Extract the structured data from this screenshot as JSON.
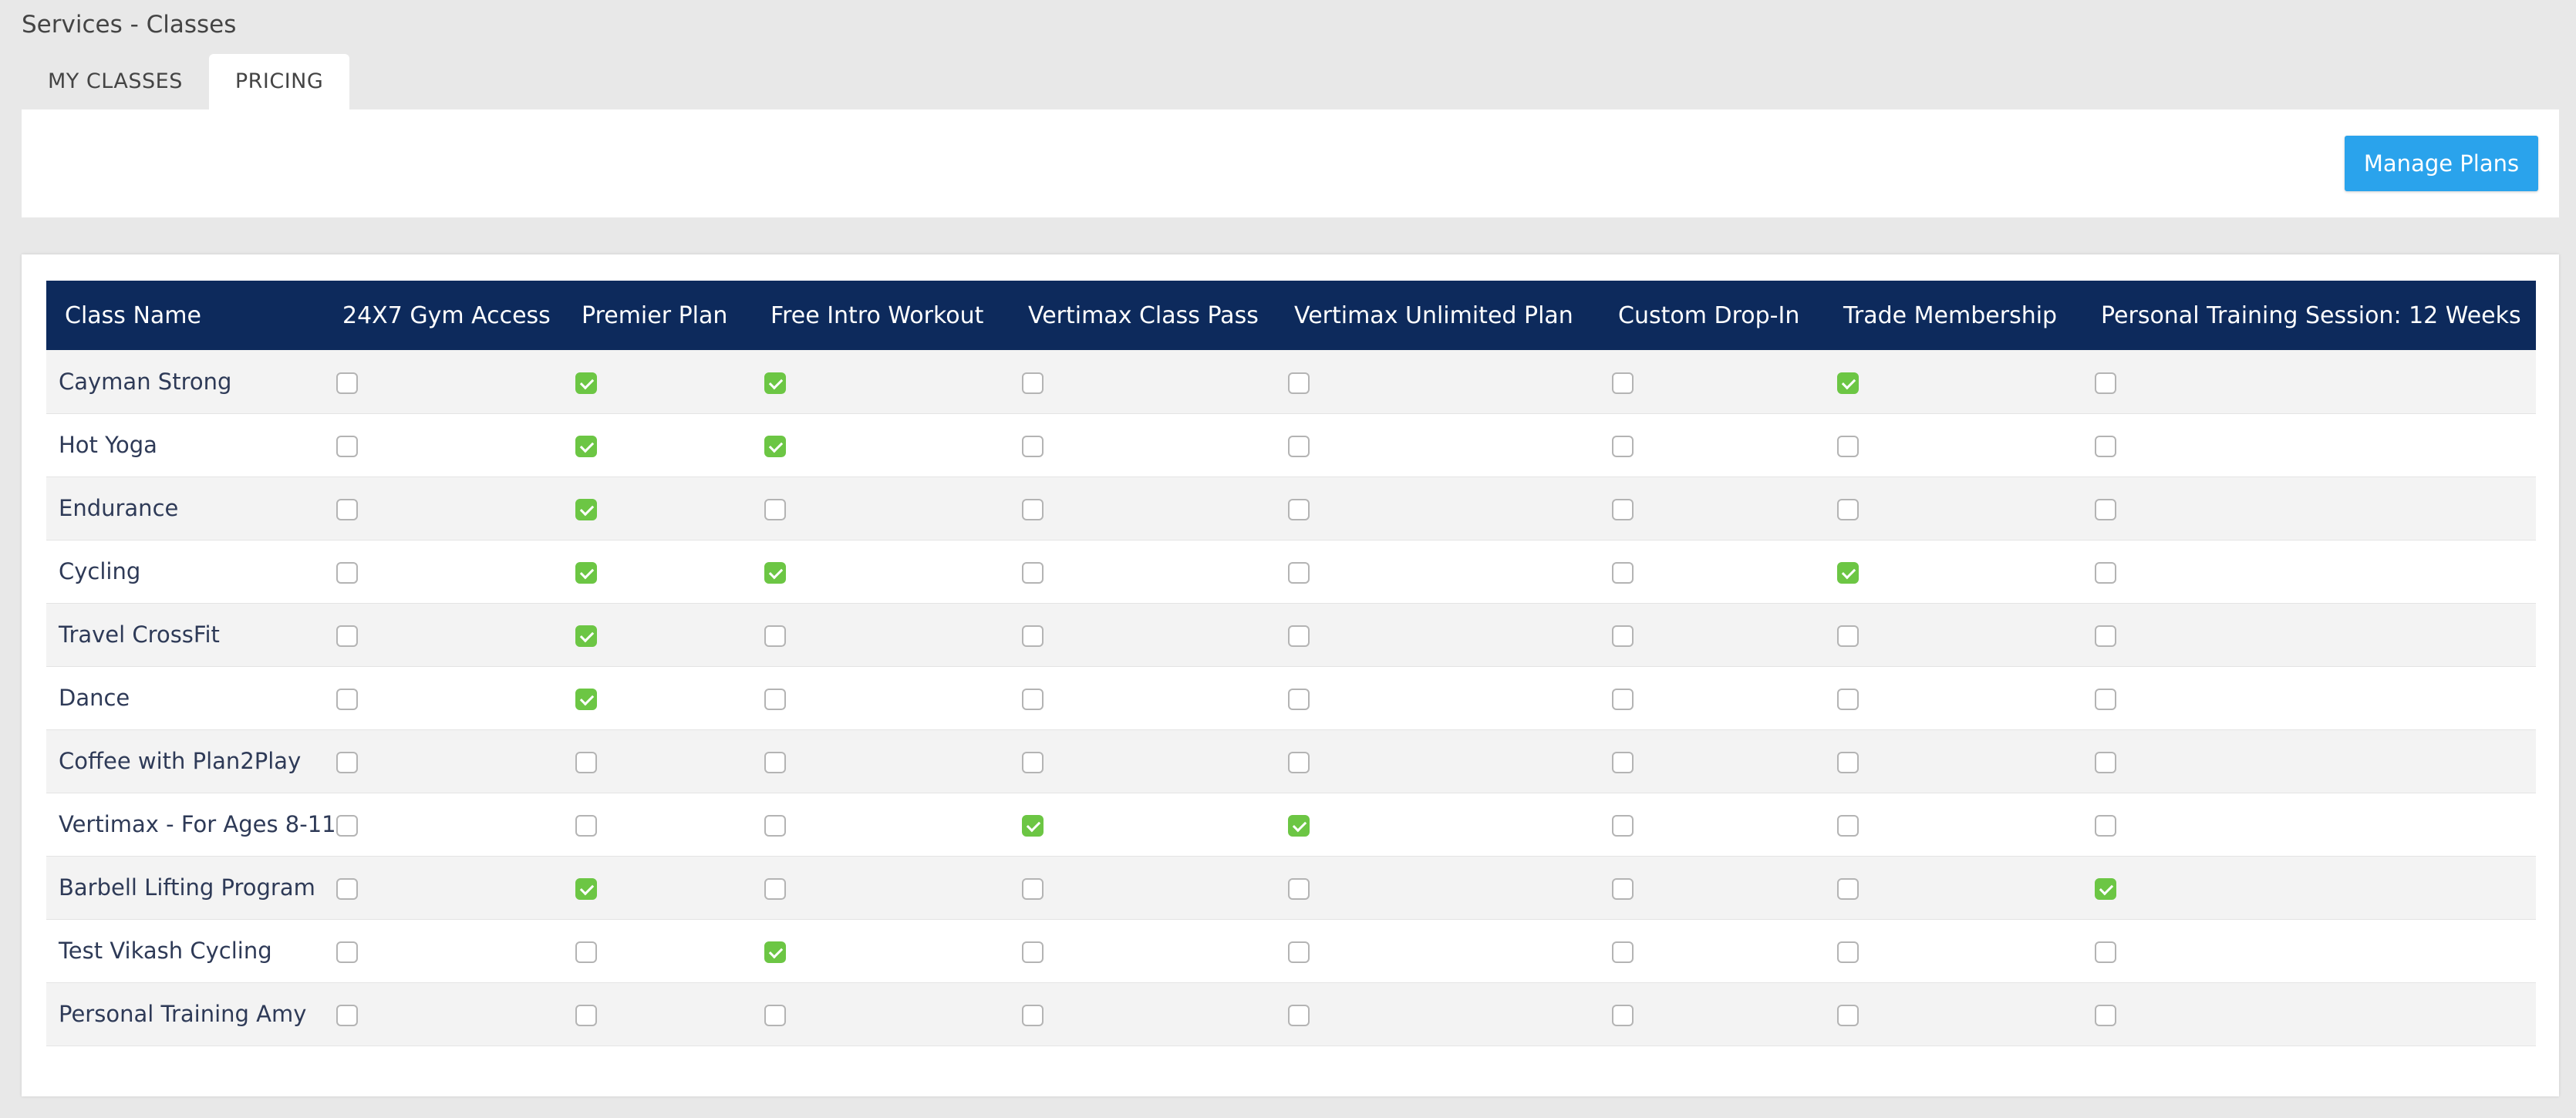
{
  "page": {
    "title": "Services - Classes"
  },
  "tabs": [
    {
      "label": "MY CLASSES",
      "active": false
    },
    {
      "label": "PRICING",
      "active": true
    }
  ],
  "toolbar": {
    "manage_plans_label": "Manage Plans"
  },
  "colors": {
    "header_bg": "#0d2a5c",
    "button_bg": "#2aa3ec",
    "checked": "#6cc644"
  },
  "table": {
    "columns": [
      "Class Name",
      "24X7 Gym Access",
      "Premier Plan",
      "Free Intro Workout",
      "Vertimax Class Pass",
      "Vertimax Unlimited Plan",
      "Custom Drop-In",
      "Trade Membership",
      "Personal Training Session: 12 Weeks"
    ],
    "rows": [
      {
        "name": "Cayman Strong",
        "checks": [
          false,
          true,
          true,
          false,
          false,
          false,
          true,
          false
        ]
      },
      {
        "name": "Hot Yoga",
        "checks": [
          false,
          true,
          true,
          false,
          false,
          false,
          false,
          false
        ]
      },
      {
        "name": "Endurance",
        "checks": [
          false,
          true,
          false,
          false,
          false,
          false,
          false,
          false
        ]
      },
      {
        "name": "Cycling",
        "checks": [
          false,
          true,
          true,
          false,
          false,
          false,
          true,
          false
        ]
      },
      {
        "name": "Travel CrossFit",
        "checks": [
          false,
          true,
          false,
          false,
          false,
          false,
          false,
          false
        ]
      },
      {
        "name": "Dance",
        "checks": [
          false,
          true,
          false,
          false,
          false,
          false,
          false,
          false
        ]
      },
      {
        "name": "Coffee with Plan2Play",
        "checks": [
          false,
          false,
          false,
          false,
          false,
          false,
          false,
          false
        ]
      },
      {
        "name": "Vertimax - For Ages 8-11",
        "checks": [
          false,
          false,
          false,
          true,
          true,
          false,
          false,
          false
        ]
      },
      {
        "name": "Barbell Lifting Program",
        "checks": [
          false,
          true,
          false,
          false,
          false,
          false,
          false,
          true
        ]
      },
      {
        "name": "Test Vikash Cycling",
        "checks": [
          false,
          false,
          true,
          false,
          false,
          false,
          false,
          false
        ]
      },
      {
        "name": "Personal Training Amy",
        "checks": [
          false,
          false,
          false,
          false,
          false,
          false,
          false,
          false
        ]
      }
    ]
  }
}
